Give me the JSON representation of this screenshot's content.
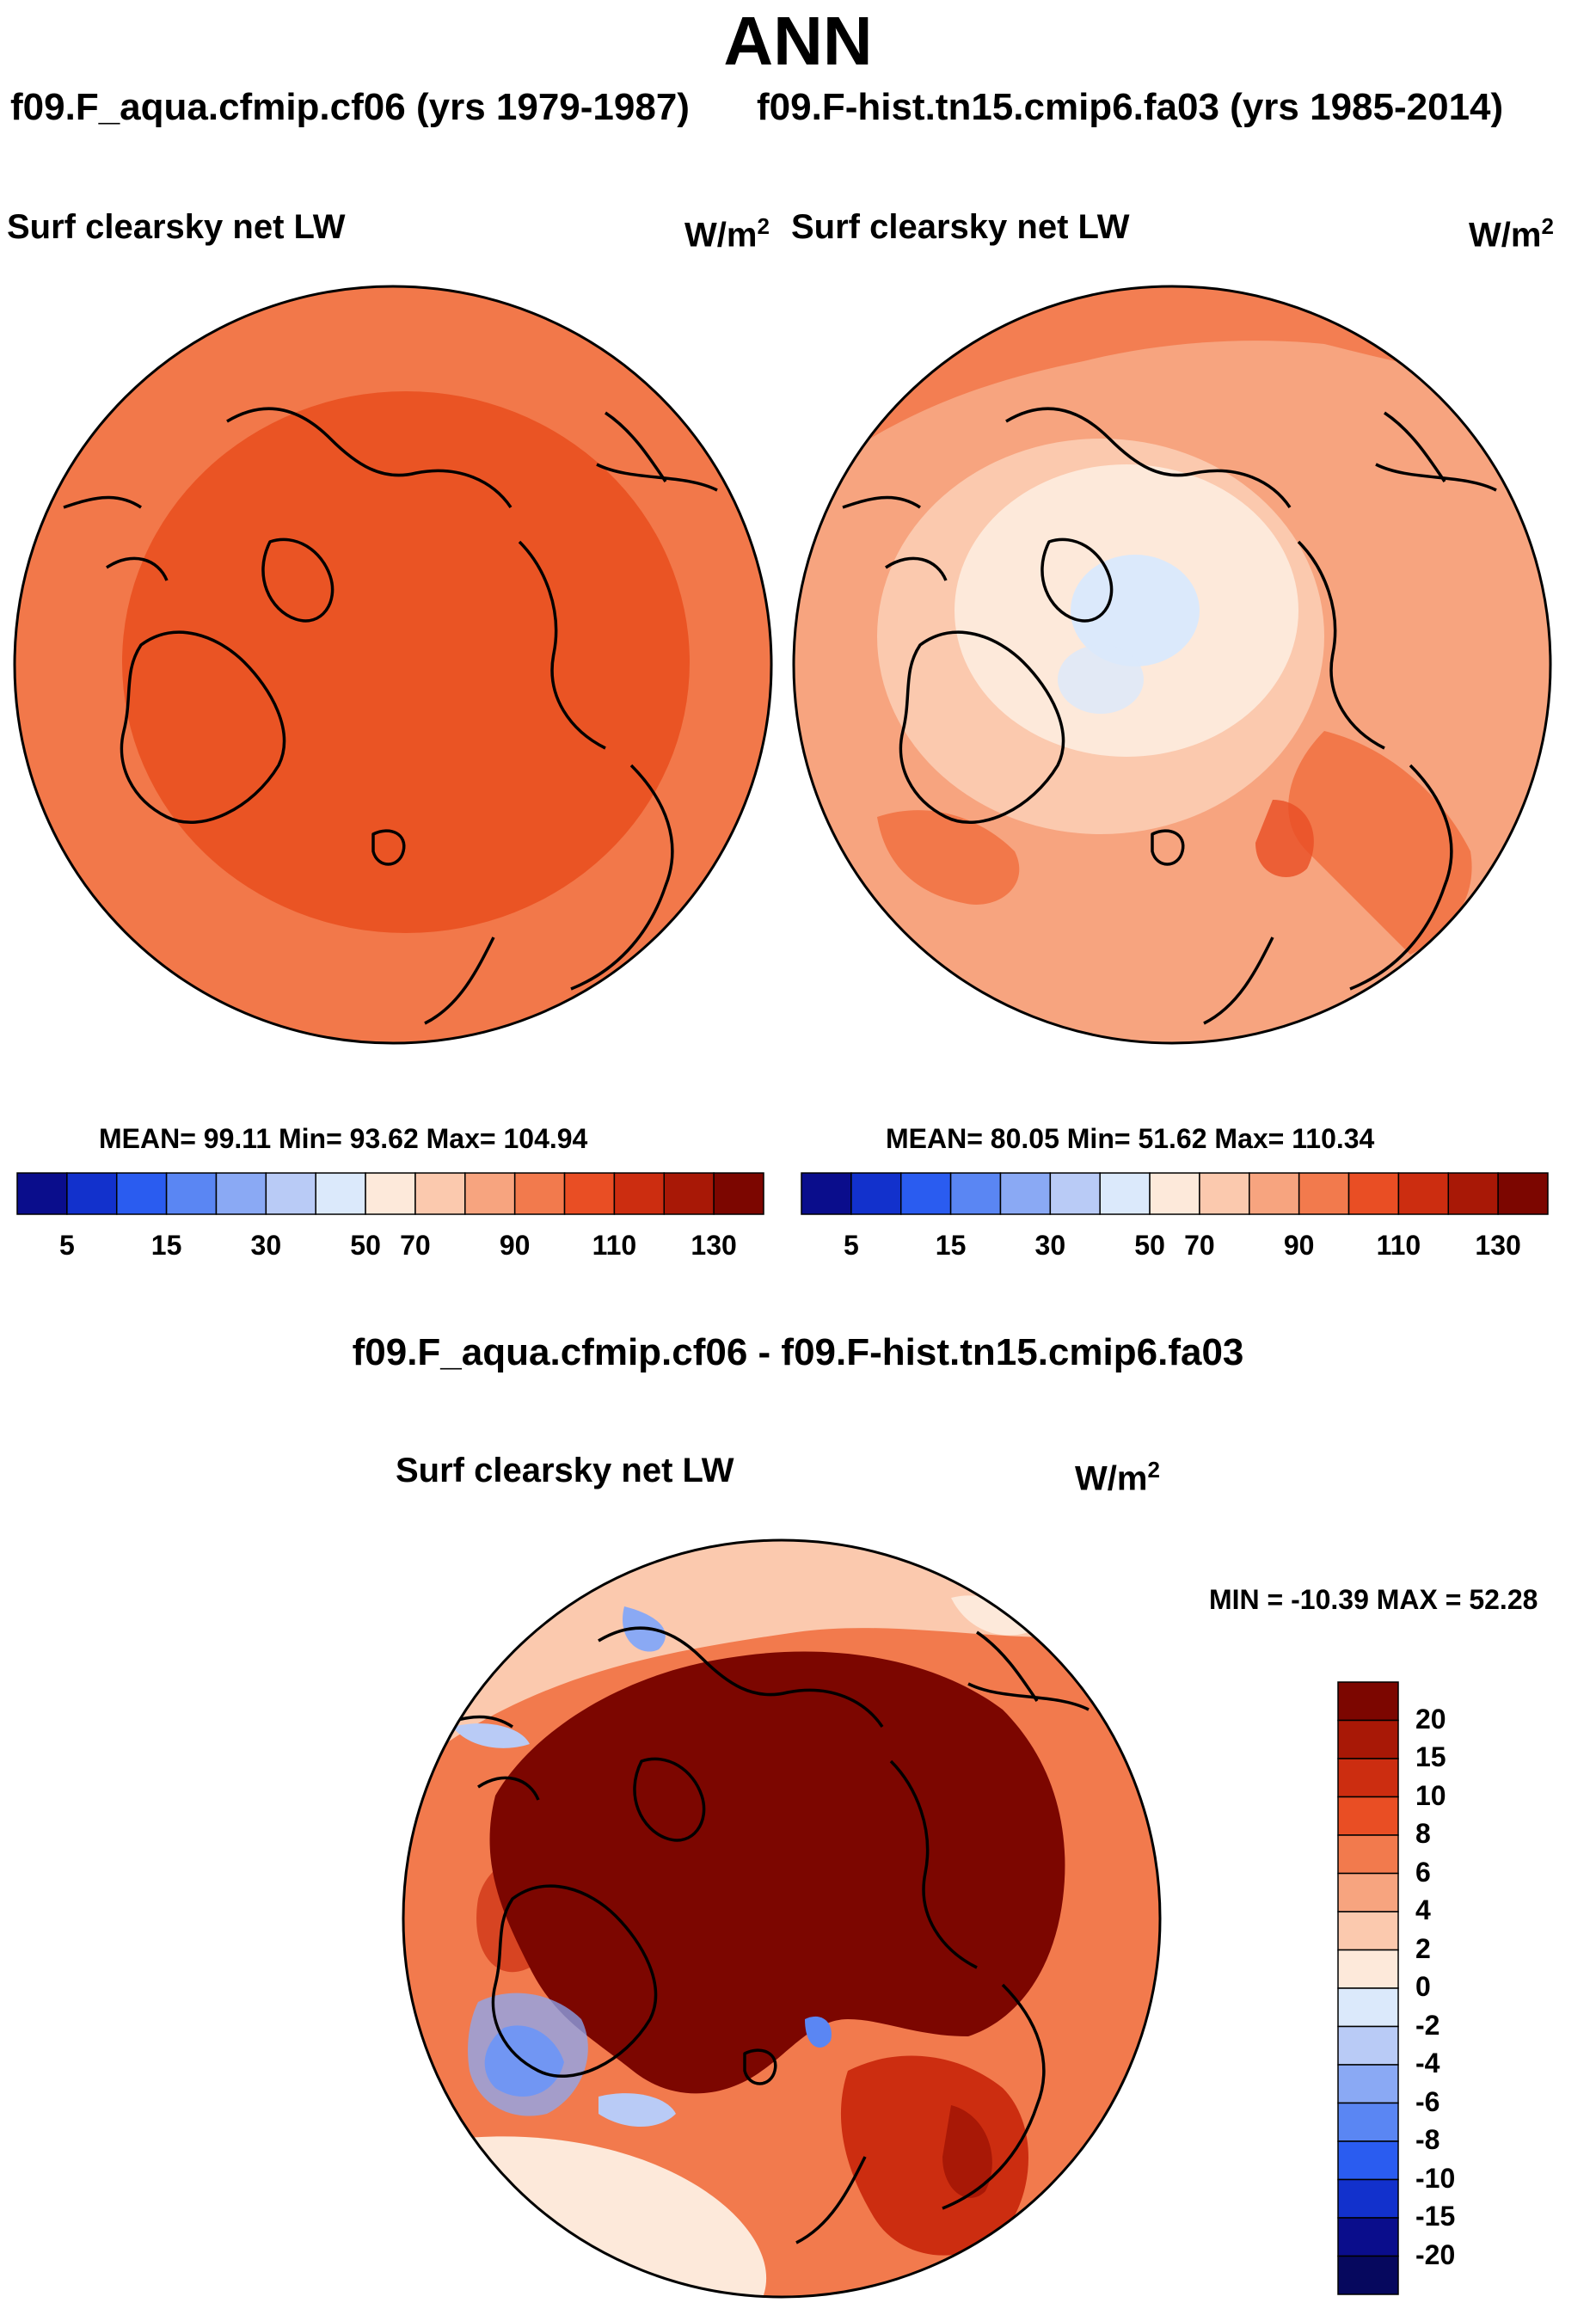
{
  "header": {
    "title": "ANN",
    "case_left": "f09.F_aqua.cfmip.cf06 (yrs 1979-1987)",
    "case_right": "f09.F-hist.tn15.cmip6.fa03 (yrs 1985-2014)"
  },
  "panel_left": {
    "variable": "Surf clearsky net LW",
    "units_base": "W/m",
    "units_exp": "2",
    "stats": "MEAN=  99.11  Min=  93.62  Max= 104.94"
  },
  "panel_right": {
    "variable": "Surf clearsky net LW",
    "units_base": "W/m",
    "units_exp": "2",
    "stats": "MEAN=  80.05  Min=  51.62  Max= 110.34"
  },
  "panel_diff": {
    "title": "f09.F_aqua.cfmip.cf06 - f09.F-hist.tn15.cmip6.fa03",
    "variable": "Surf clearsky net LW",
    "units_base": "W/m",
    "units_exp": "2",
    "minmax": "MIN = -10.39 MAX =  52.28"
  },
  "chart_data": [
    {
      "type": "heatmap",
      "projection": "north-polar-stereographic",
      "title": "Surf clearsky net LW",
      "units": "W/m2",
      "case": "f09.F_aqua.cfmip.cf06 (yrs 1979-1987)",
      "mean": 99.11,
      "min": 93.62,
      "max": 104.94,
      "colorbar_labels": [
        "5",
        "15",
        "30",
        "50",
        "70",
        "90",
        "110",
        "130"
      ],
      "colorbar_colors": [
        "#0a0d8c",
        "#1231cc",
        "#2a5cf0",
        "#5a86f3",
        "#8aa9f4",
        "#b9cbf6",
        "#dbe9fb",
        "#fde9da",
        "#fbc9ae",
        "#f7a47f",
        "#f27a4d",
        "#e94e24",
        "#cc2d10",
        "#a81806",
        "#7c0600"
      ]
    },
    {
      "type": "heatmap",
      "projection": "north-polar-stereographic",
      "title": "Surf clearsky net LW",
      "units": "W/m2",
      "case": "f09.F-hist.tn15.cmip6.fa03 (yrs 1985-2014)",
      "mean": 80.05,
      "min": 51.62,
      "max": 110.34,
      "colorbar_labels": [
        "5",
        "15",
        "30",
        "50",
        "70",
        "90",
        "110",
        "130"
      ],
      "colorbar_colors": [
        "#0a0d8c",
        "#1231cc",
        "#2a5cf0",
        "#5a86f3",
        "#8aa9f4",
        "#b9cbf6",
        "#dbe9fb",
        "#fde9da",
        "#fbc9ae",
        "#f7a47f",
        "#f27a4d",
        "#e94e24",
        "#cc2d10",
        "#a81806",
        "#7c0600"
      ]
    },
    {
      "type": "heatmap",
      "projection": "north-polar-stereographic",
      "title": "f09.F_aqua.cfmip.cf06 - f09.F-hist.tn15.cmip6.fa03",
      "variable": "Surf clearsky net LW",
      "units": "W/m2",
      "min": -10.39,
      "max": 52.28,
      "colorbar_labels": [
        "20",
        "15",
        "10",
        "8",
        "6",
        "4",
        "2",
        "0",
        "-2",
        "-4",
        "-6",
        "-8",
        "-10",
        "-15",
        "-20"
      ],
      "colorbar_colors": [
        "#7c0600",
        "#a81806",
        "#cc2d10",
        "#e94e24",
        "#f27a4d",
        "#f7a47f",
        "#fbc9ae",
        "#fde9da",
        "#dbe9fb",
        "#b9cbf6",
        "#8aa9f4",
        "#5a86f3",
        "#2a5cf0",
        "#1231cc",
        "#0a0d8c",
        "#06085e"
      ]
    }
  ]
}
